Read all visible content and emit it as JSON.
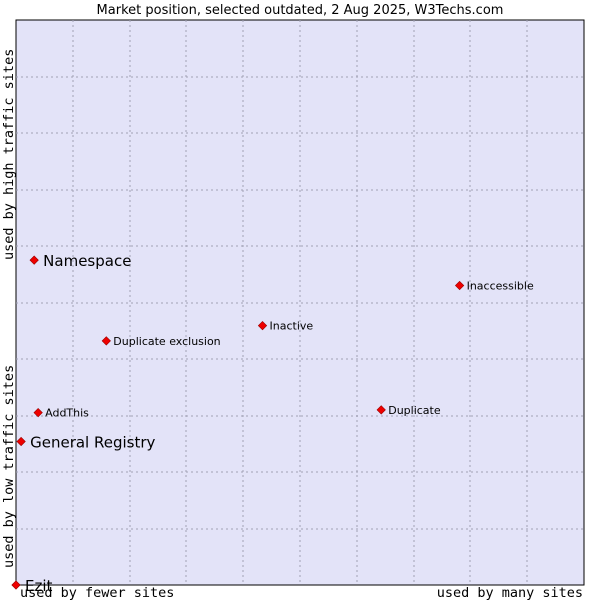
{
  "chart_data": {
    "type": "scatter",
    "title": "Market position, selected outdated, 2 Aug 2025, W3Techs.com",
    "xlabel_low": "used by fewer sites",
    "xlabel_high": "used by many sites",
    "ylabel_low": "used by low traffic sites",
    "ylabel_high": "used by high traffic sites",
    "xlim": [
      0,
      1
    ],
    "ylim": [
      0,
      1
    ],
    "grid": true,
    "colors": {
      "plot_background": "#e3e3f8",
      "grid": "#a0a0b4",
      "marker": "#ee0000",
      "marker_stroke": "#990000"
    },
    "points": [
      {
        "name": "Namespace",
        "x": 0.032,
        "y": 0.575,
        "emphasis": true
      },
      {
        "name": "Inaccessible",
        "x": 0.781,
        "y": 0.53,
        "emphasis": false
      },
      {
        "name": "Inactive",
        "x": 0.434,
        "y": 0.459,
        "emphasis": false
      },
      {
        "name": "Duplicate exclusion",
        "x": 0.159,
        "y": 0.432,
        "emphasis": false
      },
      {
        "name": "AddThis",
        "x": 0.039,
        "y": 0.305,
        "emphasis": false
      },
      {
        "name": "Duplicate",
        "x": 0.643,
        "y": 0.31,
        "emphasis": false
      },
      {
        "name": "General Registry",
        "x": 0.009,
        "y": 0.254,
        "emphasis": true
      },
      {
        "name": "Ezit",
        "x": 0.0,
        "y": 0.0,
        "emphasis": true
      }
    ]
  }
}
